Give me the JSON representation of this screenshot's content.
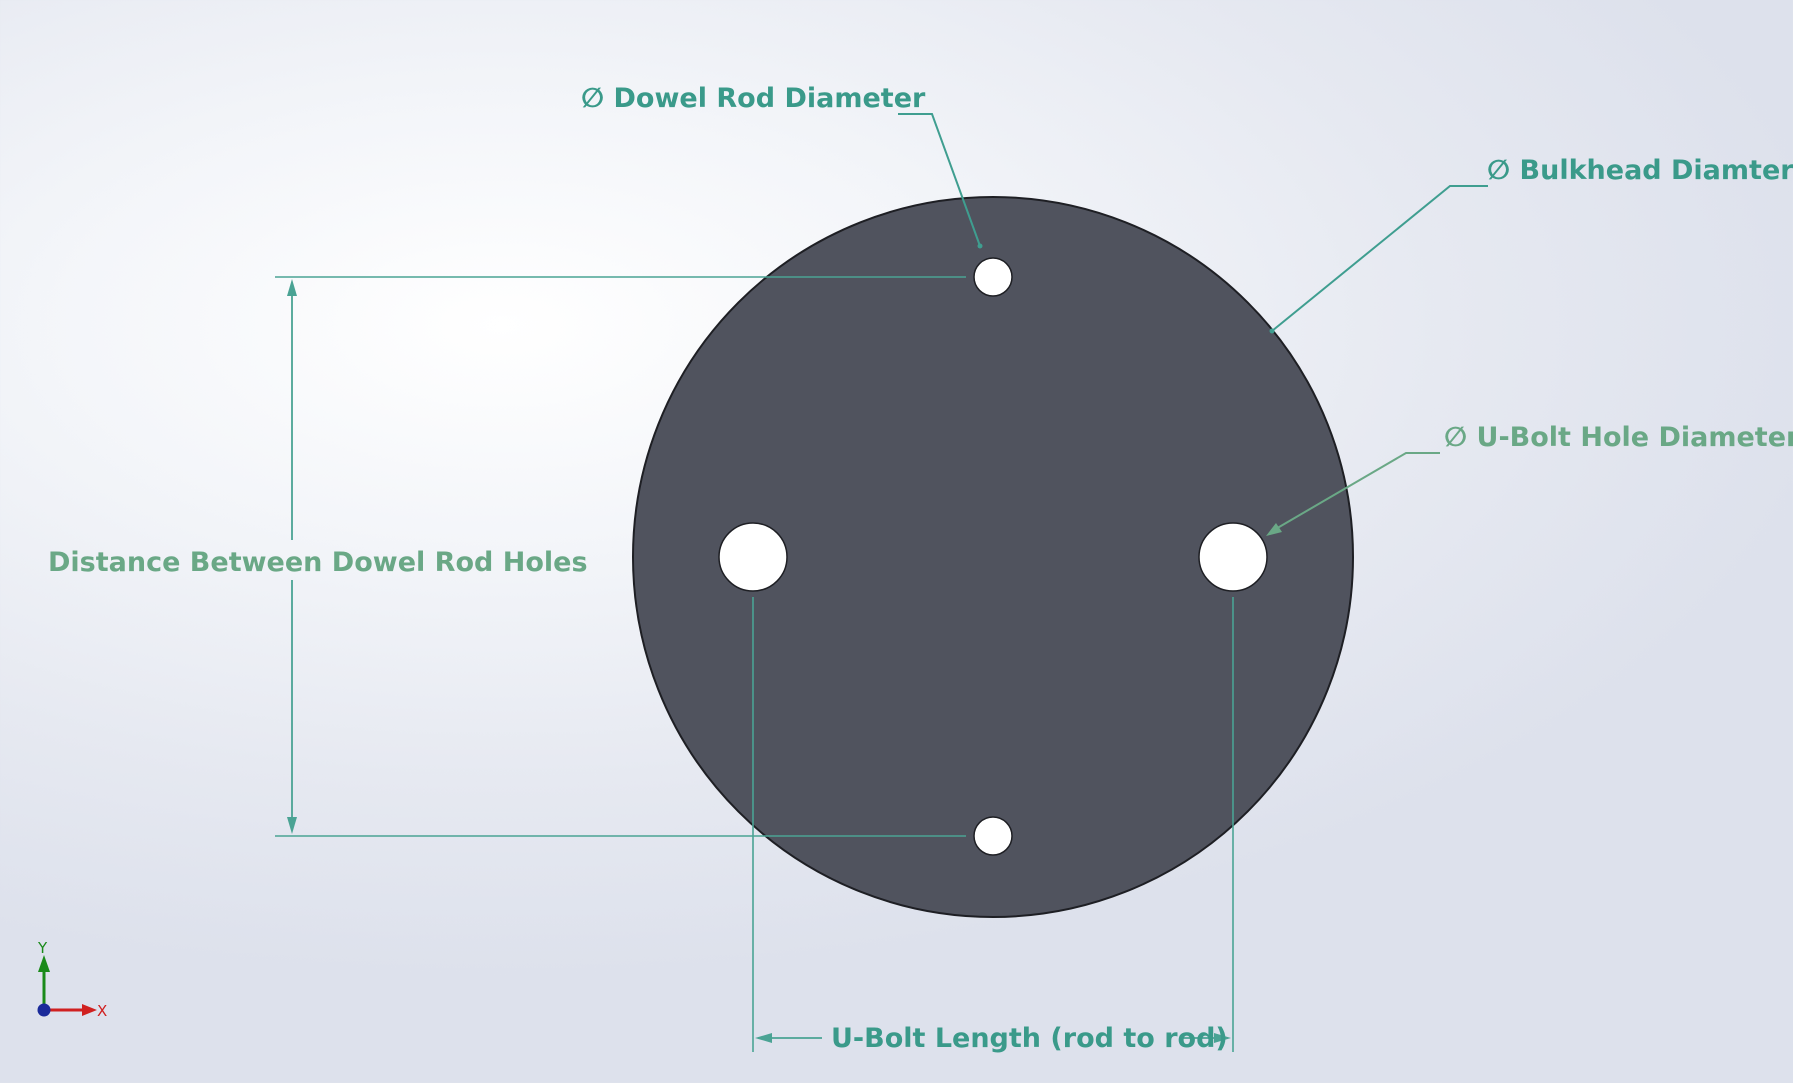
{
  "annotations": {
    "dowel_rod_diameter": "∅ Dowel Rod Diameter",
    "bulkhead_diameter": "∅ Bulkhead Diamter",
    "u_bolt_hole_diameter": "∅ U-Bolt Hole Diameter",
    "distance_between_dowel_rod_holes": "Distance Between Dowel Rod Holes",
    "u_bolt_length": "U-Bolt Length (rod to rod)"
  },
  "triad": {
    "y_label": "Y",
    "x_label": "X"
  },
  "colors": {
    "bulkhead_fill": "#50535e",
    "hole_fill": "#ffffff",
    "dimension_teal": "#3a9a8a",
    "dimension_green": "#6aa886",
    "triad_y": "#1a8a1a",
    "triad_x": "#d02020",
    "triad_origin": "#1a2a9a"
  }
}
